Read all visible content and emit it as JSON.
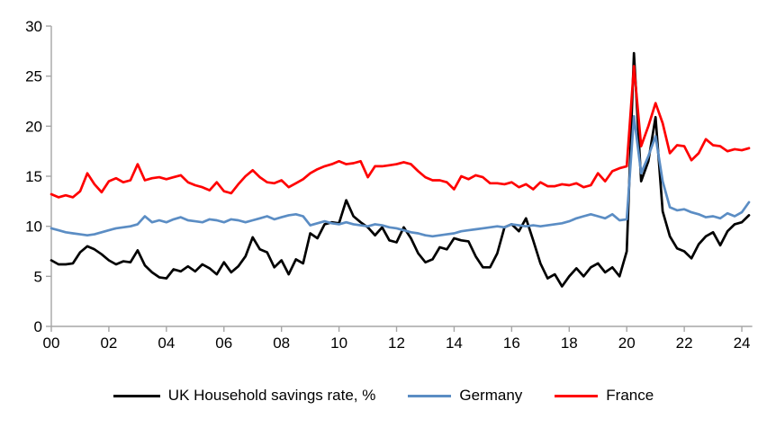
{
  "chart_data": {
    "type": "line",
    "title": "",
    "xlabel": "",
    "ylabel": "",
    "x_start_year": 2000,
    "x_step_years": 0.25,
    "xlim": [
      0,
      24.3
    ],
    "ylim": [
      0,
      30
    ],
    "grid": false,
    "legend_position": "bottom",
    "axis_color": "#A6A6A6",
    "text_color": "#000000",
    "y_ticks": [
      0,
      5,
      10,
      15,
      20,
      25,
      30
    ],
    "x_tick_values": [
      0,
      2,
      4,
      6,
      8,
      10,
      12,
      14,
      16,
      18,
      20,
      22,
      24
    ],
    "x_tick_labels": [
      "00",
      "02",
      "04",
      "06",
      "08",
      "10",
      "12",
      "14",
      "16",
      "18",
      "20",
      "22",
      "24"
    ],
    "series": [
      {
        "name": "UK Household savings rate, %",
        "color": "#000000",
        "values": [
          6.6,
          6.2,
          6.2,
          6.3,
          7.4,
          8.0,
          7.7,
          7.2,
          6.6,
          6.2,
          6.5,
          6.4,
          7.6,
          6.1,
          5.4,
          4.9,
          4.8,
          5.7,
          5.5,
          6.0,
          5.5,
          6.2,
          5.8,
          5.2,
          6.4,
          5.4,
          6.0,
          7.0,
          8.9,
          7.7,
          7.4,
          5.9,
          6.6,
          5.2,
          6.7,
          6.3,
          9.3,
          8.8,
          10.2,
          10.4,
          10.3,
          12.6,
          11.0,
          10.4,
          9.9,
          9.1,
          9.9,
          8.6,
          8.4,
          9.9,
          8.8,
          7.3,
          6.4,
          6.7,
          7.9,
          7.7,
          8.8,
          8.6,
          8.5,
          7.0,
          5.9,
          5.9,
          7.3,
          9.9,
          10.2,
          9.5,
          10.8,
          8.6,
          6.3,
          4.8,
          5.2,
          4.0,
          5.0,
          5.8,
          5.0,
          5.9,
          6.3,
          5.4,
          5.9,
          5.0,
          7.5,
          27.3,
          14.5,
          16.5,
          20.9,
          11.5,
          9.0,
          7.8,
          7.5,
          6.8,
          8.2,
          9.0,
          9.4,
          8.1,
          9.5,
          10.2,
          10.4,
          11.1
        ]
      },
      {
        "name": "Germany",
        "color": "#5B8DC4",
        "values": [
          9.8,
          9.6,
          9.4,
          9.3,
          9.2,
          9.1,
          9.2,
          9.4,
          9.6,
          9.8,
          9.9,
          10.0,
          10.2,
          11.0,
          10.4,
          10.6,
          10.4,
          10.7,
          10.9,
          10.6,
          10.5,
          10.4,
          10.7,
          10.6,
          10.4,
          10.7,
          10.6,
          10.4,
          10.6,
          10.8,
          11.0,
          10.7,
          10.9,
          11.1,
          11.2,
          11.0,
          10.1,
          10.3,
          10.5,
          10.3,
          10.2,
          10.4,
          10.2,
          10.1,
          10.0,
          10.2,
          10.1,
          9.9,
          9.8,
          9.6,
          9.4,
          9.3,
          9.1,
          9.0,
          9.1,
          9.2,
          9.3,
          9.5,
          9.6,
          9.7,
          9.8,
          9.9,
          10.0,
          9.9,
          10.2,
          10.1,
          10.0,
          10.1,
          10.0,
          10.1,
          10.2,
          10.3,
          10.5,
          10.8,
          11.0,
          11.2,
          11.0,
          10.8,
          11.2,
          10.6,
          10.7,
          21.0,
          15.3,
          17.0,
          19.0,
          14.5,
          11.9,
          11.6,
          11.7,
          11.4,
          11.2,
          10.9,
          11.0,
          10.8,
          11.3,
          11.0,
          11.4,
          12.4
        ]
      },
      {
        "name": "France",
        "color": "#FF0000",
        "values": [
          13.2,
          12.9,
          13.1,
          12.9,
          13.5,
          15.3,
          14.2,
          13.4,
          14.5,
          14.8,
          14.4,
          14.6,
          16.2,
          14.6,
          14.8,
          14.9,
          14.7,
          14.9,
          15.1,
          14.4,
          14.1,
          13.9,
          13.6,
          14.4,
          13.5,
          13.3,
          14.2,
          15.0,
          15.6,
          14.9,
          14.4,
          14.3,
          14.6,
          13.9,
          14.3,
          14.7,
          15.3,
          15.7,
          16.0,
          16.2,
          16.5,
          16.2,
          16.3,
          16.5,
          14.9,
          16.0,
          16.0,
          16.1,
          16.2,
          16.4,
          16.2,
          15.5,
          14.9,
          14.6,
          14.6,
          14.4,
          13.7,
          15.0,
          14.7,
          15.1,
          14.9,
          14.3,
          14.3,
          14.2,
          14.4,
          13.9,
          14.2,
          13.7,
          14.4,
          14.0,
          14.0,
          14.2,
          14.1,
          14.3,
          13.9,
          14.1,
          15.3,
          14.5,
          15.5,
          15.8,
          16.0,
          26.0,
          18.0,
          20.0,
          22.3,
          20.3,
          17.3,
          18.1,
          18.0,
          16.6,
          17.3,
          18.7,
          18.1,
          18.0,
          17.5,
          17.7,
          17.6,
          17.8
        ]
      }
    ]
  }
}
